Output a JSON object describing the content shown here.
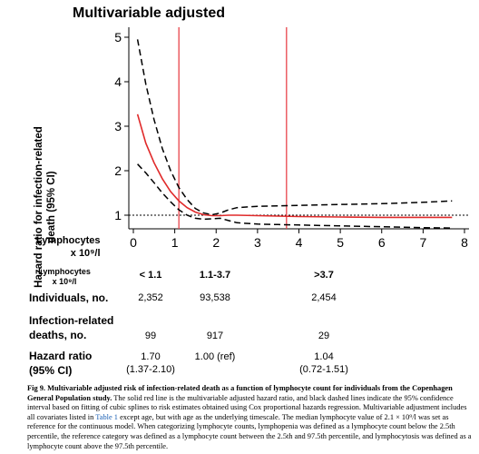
{
  "figure": {
    "title": "Multivariable adjusted",
    "ylabel_line1": "Hazard ratio for infection-related",
    "ylabel_line2": "death (95% CI)",
    "x_axis_label_line1": "Lymphocytes",
    "x_axis_label_line2": "x 10⁹/l",
    "y_ticks": [
      "5",
      "4",
      "3",
      "2",
      "1"
    ],
    "x_ticks": [
      "0",
      "1",
      "2",
      "3",
      "4",
      "5",
      "6",
      "7",
      "8"
    ]
  },
  "chart_data": {
    "type": "line",
    "xlabel": "Lymphocytes x 10⁹/l",
    "ylabel": "Hazard ratio for infection-related death (95% CI)",
    "xlim": [
      -0.2,
      8
    ],
    "ylim": [
      0.7,
      5.2
    ],
    "reference_line_y": 1,
    "vertical_lines_x": [
      1.1,
      3.7
    ],
    "series": [
      {
        "style": "solid-red",
        "x": [
          0.1,
          0.3,
          0.5,
          0.7,
          0.9,
          1.1,
          1.3,
          1.5,
          1.7,
          1.9,
          2.1,
          2.3,
          2.5,
          3.0,
          3.5,
          4.0,
          5.0,
          6.0,
          7.0,
          7.7
        ],
        "y": [
          3.27,
          2.62,
          2.18,
          1.82,
          1.53,
          1.32,
          1.17,
          1.07,
          1.01,
          0.99,
          0.99,
          1.0,
          1.0,
          0.99,
          0.98,
          0.97,
          0.96,
          0.95,
          0.95,
          0.95
        ]
      },
      {
        "style": "dashed-black",
        "x": [
          0.1,
          0.3,
          0.5,
          0.7,
          0.9,
          1.1,
          1.3,
          1.5,
          1.7,
          1.9,
          2.1,
          2.3,
          2.5,
          3.0,
          3.5,
          4.0,
          5.0,
          6.0,
          7.0,
          7.7
        ],
        "y": [
          4.95,
          3.95,
          3.15,
          2.5,
          2.0,
          1.62,
          1.35,
          1.15,
          1.05,
          1.01,
          1.05,
          1.12,
          1.17,
          1.2,
          1.21,
          1.22,
          1.24,
          1.26,
          1.29,
          1.32
        ]
      },
      {
        "style": "dashed-black",
        "x": [
          0.1,
          0.3,
          0.5,
          0.7,
          0.9,
          1.1,
          1.3,
          1.5,
          1.7,
          1.9,
          2.1,
          2.3,
          2.5,
          3.0,
          3.5,
          4.0,
          5.0,
          6.0,
          7.0,
          7.7
        ],
        "y": [
          2.15,
          1.95,
          1.73,
          1.5,
          1.3,
          1.12,
          1.0,
          0.93,
          0.91,
          0.92,
          0.93,
          0.88,
          0.83,
          0.8,
          0.79,
          0.78,
          0.76,
          0.74,
          0.72,
          0.71
        ]
      }
    ]
  },
  "table": {
    "small_header_line1": "Lymphocytes",
    "small_header_line2": "x 10⁹/l",
    "categories": [
      "< 1.1",
      "1.1-3.7",
      ">3.7"
    ],
    "rows": {
      "individuals_label": "Individuals, no.",
      "individuals": [
        "2,352",
        "93,538",
        "2,454"
      ],
      "deaths_label_line1": "Infection-related",
      "deaths_label_line2": "deaths, no.",
      "deaths": [
        "99",
        "917",
        "29"
      ],
      "hr_label_line1": "Hazard ratio",
      "hr_label_line2": "(95%  CI)",
      "hr": [
        "1.70",
        "1.00 (ref)",
        "1.04"
      ],
      "ci": [
        "(1.37-2.10)",
        "",
        "(0.72-1.51)"
      ]
    }
  },
  "caption": {
    "label": "Fig 9. Multivariable adjusted risk of infection-related death as a function of lymphocyte count for individuals from the Copenhagen General Population study.",
    "text1": " The solid red line is the multivariable adjusted hazard ratio, and black dashed lines indicate the 95% confidence interval based on fitting of cubic splines to risk estimates obtained using Cox proportional hazards regression. Multivariable adjustment includes all covariates listed in ",
    "link": "Table 1",
    "text2": " except age, but with age as the underlying timescale. The median lymphocyte value of 2.1 × 10⁹/l was set as reference for the continuous model. When categorizing lymphocyte counts, lymphopenia was defined as a lymphocyte count below the 2.5th percentile, the reference category was defined as a lymphocyte count between the 2.5th and 97.5th percentile, and lymphocytosis was defined as a lymphocyte count above the 97.5th percentile."
  }
}
